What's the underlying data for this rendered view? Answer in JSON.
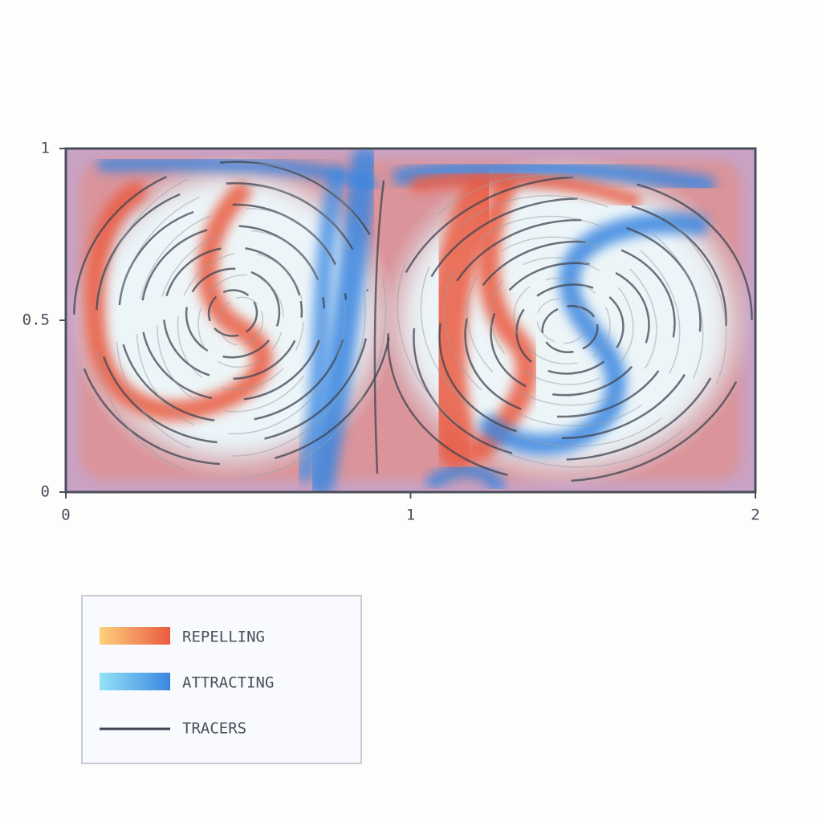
{
  "chart_data": {
    "type": "field",
    "xlim": [
      0,
      2
    ],
    "ylim": [
      0,
      1
    ],
    "xticks": [
      0,
      1,
      2
    ],
    "yticks": [
      0,
      0.5,
      1
    ],
    "series": [
      {
        "name": "REPELLING",
        "color": [
          "#fdd17c",
          "#ea5a40"
        ]
      },
      {
        "name": "ATTRACTING",
        "color": [
          "#94e3f7",
          "#3a86e0"
        ]
      },
      {
        "name": "TRACERS",
        "color": "#3e4452"
      }
    ]
  }
}
